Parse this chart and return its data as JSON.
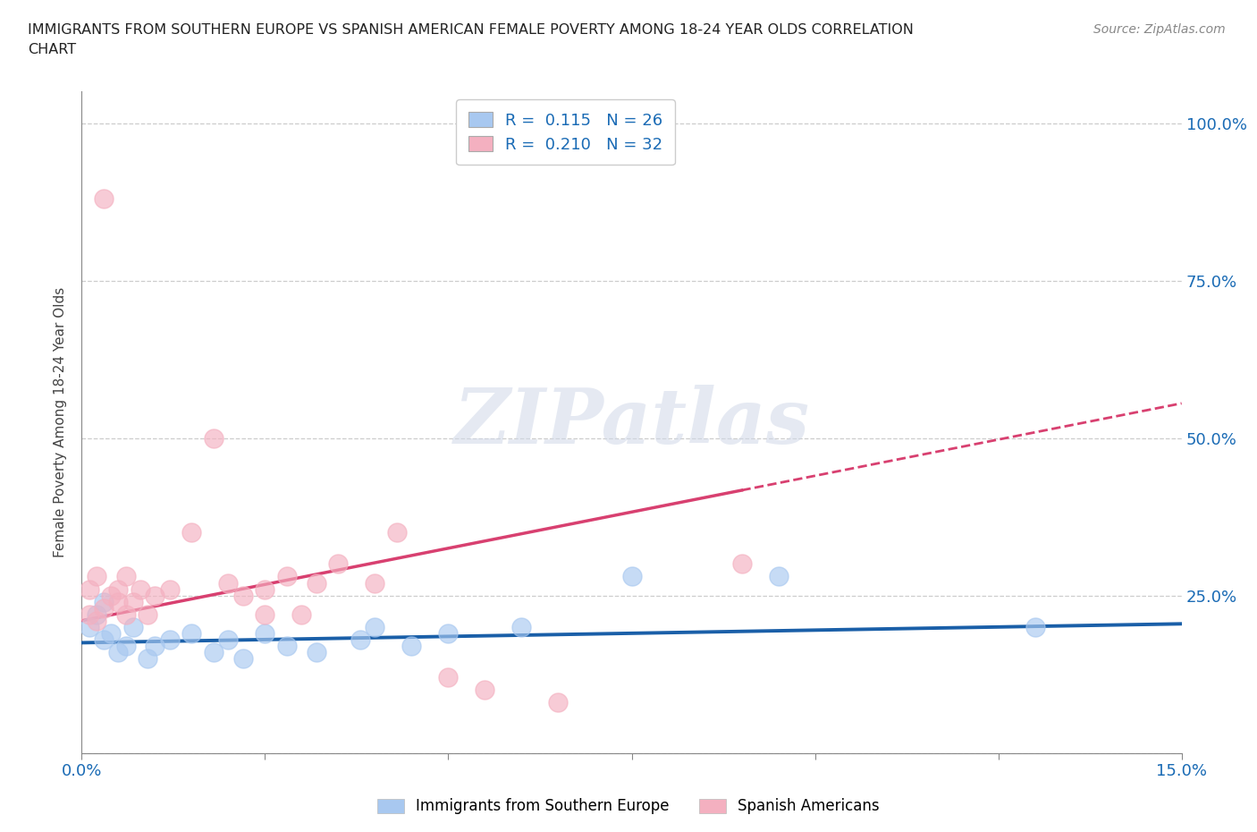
{
  "title_line1": "IMMIGRANTS FROM SOUTHERN EUROPE VS SPANISH AMERICAN FEMALE POVERTY AMONG 18-24 YEAR OLDS CORRELATION",
  "title_line2": "CHART",
  "source": "Source: ZipAtlas.com",
  "ylabel": "Female Poverty Among 18-24 Year Olds",
  "xlim": [
    0.0,
    0.15
  ],
  "ylim": [
    0.0,
    1.05
  ],
  "blue_color": "#a8c8f0",
  "pink_color": "#f4b0c0",
  "blue_line_color": "#1a5fa8",
  "pink_line_color": "#d84070",
  "blue_R": 0.115,
  "blue_N": 26,
  "pink_R": 0.21,
  "pink_N": 32,
  "blue_scatter_x": [
    0.001,
    0.002,
    0.003,
    0.003,
    0.004,
    0.005,
    0.006,
    0.007,
    0.009,
    0.01,
    0.012,
    0.015,
    0.018,
    0.02,
    0.022,
    0.025,
    0.028,
    0.032,
    0.038,
    0.04,
    0.045,
    0.05,
    0.06,
    0.075,
    0.095,
    0.13
  ],
  "blue_scatter_y": [
    0.2,
    0.22,
    0.18,
    0.24,
    0.19,
    0.16,
    0.17,
    0.2,
    0.15,
    0.17,
    0.18,
    0.19,
    0.16,
    0.18,
    0.15,
    0.19,
    0.17,
    0.16,
    0.18,
    0.2,
    0.17,
    0.19,
    0.2,
    0.28,
    0.28,
    0.2
  ],
  "pink_scatter_x": [
    0.001,
    0.001,
    0.002,
    0.002,
    0.003,
    0.003,
    0.004,
    0.005,
    0.005,
    0.006,
    0.006,
    0.007,
    0.008,
    0.009,
    0.01,
    0.012,
    0.015,
    0.018,
    0.02,
    0.022,
    0.025,
    0.025,
    0.028,
    0.03,
    0.032,
    0.035,
    0.04,
    0.043,
    0.05,
    0.055,
    0.065,
    0.09
  ],
  "pink_scatter_y": [
    0.22,
    0.26,
    0.21,
    0.28,
    0.23,
    0.88,
    0.25,
    0.24,
    0.26,
    0.22,
    0.28,
    0.24,
    0.26,
    0.22,
    0.25,
    0.26,
    0.35,
    0.5,
    0.27,
    0.25,
    0.26,
    0.22,
    0.28,
    0.22,
    0.27,
    0.3,
    0.27,
    0.35,
    0.12,
    0.1,
    0.08,
    0.3
  ],
  "pink_line_x_end": 0.09,
  "watermark_text": "ZIPatlas",
  "background_color": "#ffffff",
  "grid_color": "#c8c8c8",
  "legend_R_color": "#1a6bb5",
  "legend_N_color": "#1a6bb5"
}
